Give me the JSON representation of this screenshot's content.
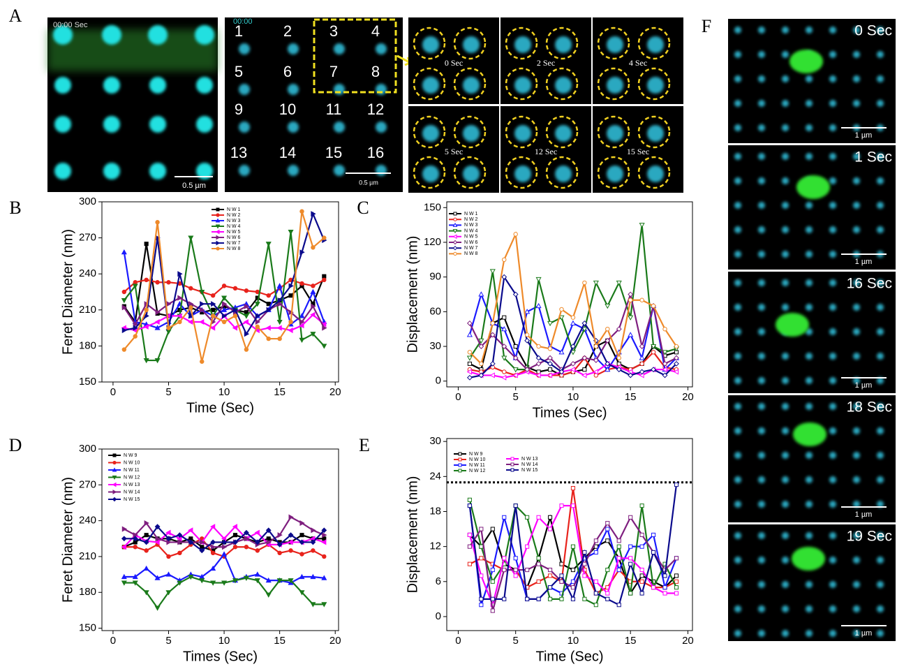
{
  "panel_labels": [
    "A",
    "B",
    "C",
    "D",
    "E",
    "F"
  ],
  "panel_a": {
    "overview_time": "00:00 Sec",
    "overview_scale": "0.5 µm",
    "index_time": "00:00",
    "index_labels": [
      "1",
      "2",
      "3",
      "4",
      "5",
      "6",
      "7",
      "8",
      "9",
      "10",
      "11",
      "12",
      "13",
      "14",
      "15",
      "16"
    ],
    "index_scale": "0.5 µm",
    "frame_times": [
      "0 Sec",
      "2 Sec",
      "4 Sec",
      "5 Sec",
      "12 Sec",
      "15 Sec"
    ]
  },
  "panel_f": {
    "frame_times": [
      "0 Sec",
      "1 Sec",
      "16 Sec",
      "18 Sec",
      "19 Sec"
    ],
    "scale": "1 µm"
  },
  "chart_data": [
    {
      "type": "line",
      "x_label": "Time (Sec)",
      "y_label": "Feret Diameter (nm)",
      "x": [
        1,
        2,
        3,
        4,
        5,
        6,
        7,
        8,
        9,
        10,
        11,
        12,
        13,
        14,
        15,
        16,
        17,
        18,
        19
      ],
      "xlim": [
        -1,
        20.3
      ],
      "ylim": [
        150,
        300
      ],
      "xticks": [
        0,
        5,
        10,
        15,
        20
      ],
      "yticks": [
        150,
        180,
        210,
        240,
        270,
        300
      ],
      "marker_fill": true,
      "legend_columns": 1,
      "series": [
        {
          "name": "N W 1",
          "color": "#000000",
          "marker": "square",
          "values": [
            213,
            200,
            265,
            207,
            205,
            210,
            212,
            208,
            210,
            213,
            210,
            208,
            220,
            215,
            218,
            222,
            230,
            215,
            238
          ]
        },
        {
          "name": "N W 2",
          "color": "#e8231c",
          "marker": "circle",
          "values": [
            225,
            233,
            235,
            233,
            233,
            232,
            228,
            225,
            222,
            230,
            228,
            226,
            225,
            222,
            228,
            235,
            232,
            230,
            235
          ]
        },
        {
          "name": "N W 3",
          "color": "#1a1aff",
          "marker": "triangle",
          "values": [
            258,
            200,
            198,
            195,
            200,
            215,
            205,
            210,
            205,
            210,
            212,
            215,
            205,
            210,
            230,
            198,
            205,
            225,
            200
          ]
        },
        {
          "name": "N W 4",
          "color": "#1a7a1a",
          "marker": "triangle-down",
          "values": [
            218,
            230,
            168,
            168,
            192,
            205,
            270,
            225,
            205,
            220,
            210,
            205,
            215,
            265,
            200,
            275,
            185,
            190,
            180
          ]
        },
        {
          "name": "N W 5",
          "color": "#ff00ff",
          "marker": "triangle-left",
          "values": [
            195,
            193,
            196,
            200,
            205,
            205,
            200,
            200,
            195,
            205,
            195,
            200,
            193,
            195,
            195,
            193,
            197,
            206,
            198
          ]
        },
        {
          "name": "N W 6",
          "color": "#7f1f7f",
          "marker": "triangle-right",
          "values": [
            212,
            198,
            215,
            208,
            215,
            220,
            215,
            210,
            200,
            215,
            208,
            213,
            200,
            210,
            215,
            208,
            200,
            213,
            195
          ]
        },
        {
          "name": "N W 7",
          "color": "#0a0a8c",
          "marker": "triangle-right",
          "values": [
            193,
            195,
            205,
            270,
            195,
            240,
            205,
            215,
            215,
            205,
            210,
            190,
            205,
            210,
            218,
            230,
            258,
            290,
            268
          ]
        },
        {
          "name": "N W 8",
          "color": "#ee8a2a",
          "marker": "circle",
          "values": [
            177,
            188,
            210,
            283,
            195,
            200,
            212,
            167,
            205,
            200,
            205,
            177,
            196,
            186,
            186,
            200,
            292,
            262,
            270
          ]
        }
      ]
    },
    {
      "type": "line",
      "x_label": "Times (Sec)",
      "y_label": "Displacement (nm)",
      "x": [
        1,
        2,
        3,
        4,
        5,
        6,
        7,
        8,
        9,
        10,
        11,
        12,
        13,
        14,
        15,
        16,
        17,
        18,
        19
      ],
      "xlim": [
        -1,
        20.4
      ],
      "ylim": [
        -5,
        155
      ],
      "xticks": [
        0,
        5,
        10,
        15,
        20
      ],
      "yticks": [
        0,
        30,
        60,
        90,
        120,
        150
      ],
      "marker_fill": false,
      "legend_columns": 1,
      "series": [
        {
          "name": "N W 1",
          "color": "#000000",
          "marker": "square",
          "values": [
            15,
            10,
            50,
            55,
            30,
            12,
            8,
            10,
            5,
            8,
            10,
            30,
            35,
            15,
            10,
            15,
            30,
            22,
            25
          ]
        },
        {
          "name": "N W 2",
          "color": "#e8231c",
          "marker": "circle",
          "values": [
            10,
            8,
            12,
            8,
            5,
            10,
            5,
            5,
            5,
            8,
            20,
            5,
            10,
            12,
            10,
            15,
            25,
            12,
            10
          ]
        },
        {
          "name": "N W 3",
          "color": "#1a1aff",
          "marker": "triangle",
          "values": [
            40,
            75,
            50,
            45,
            20,
            60,
            65,
            30,
            25,
            50,
            45,
            20,
            10,
            25,
            40,
            20,
            65,
            10,
            20
          ]
        },
        {
          "name": "N W 4",
          "color": "#1a7a1a",
          "marker": "triangle-down",
          "values": [
            20,
            35,
            95,
            20,
            10,
            10,
            88,
            50,
            55,
            25,
            45,
            85,
            65,
            85,
            55,
            135,
            30,
            25,
            28
          ]
        },
        {
          "name": "N W 5",
          "color": "#ff00ff",
          "marker": "triangle-left",
          "values": [
            8,
            5,
            5,
            3,
            5,
            8,
            5,
            5,
            8,
            10,
            5,
            8,
            15,
            12,
            8,
            5,
            10,
            10,
            8
          ]
        },
        {
          "name": "N W 6",
          "color": "#7f1f7f",
          "marker": "diamond",
          "values": [
            50,
            30,
            40,
            30,
            20,
            10,
            15,
            20,
            10,
            15,
            20,
            18,
            35,
            45,
            75,
            30,
            65,
            15,
            20
          ]
        },
        {
          "name": "N W 7",
          "color": "#0a0a8c",
          "marker": "diamond",
          "values": [
            3,
            5,
            15,
            90,
            75,
            35,
            20,
            15,
            8,
            30,
            50,
            35,
            15,
            10,
            5,
            8,
            10,
            5,
            15
          ]
        },
        {
          "name": "N W 8",
          "color": "#ee8a2a",
          "marker": "circle",
          "values": [
            25,
            15,
            50,
            105,
            127,
            40,
            30,
            28,
            62,
            55,
            85,
            30,
            45,
            20,
            70,
            70,
            65,
            45,
            30
          ]
        }
      ]
    },
    {
      "type": "line",
      "x_label": "Times (Sec)",
      "y_label": "Feret Diameter (nm)",
      "x": [
        1,
        2,
        3,
        4,
        5,
        6,
        7,
        8,
        9,
        10,
        11,
        12,
        13,
        14,
        15,
        16,
        17,
        18,
        19
      ],
      "xlim": [
        -1,
        20.3
      ],
      "ylim": [
        148,
        300
      ],
      "xticks": [
        0,
        5,
        10,
        15,
        20
      ],
      "yticks": [
        150,
        180,
        210,
        240,
        270,
        300
      ],
      "marker_fill": true,
      "legend_columns": 1,
      "series": [
        {
          "name": "N W 9",
          "color": "#000000",
          "marker": "square",
          "values": [
            218,
            222,
            228,
            225,
            225,
            222,
            225,
            218,
            215,
            222,
            228,
            225,
            222,
            225,
            222,
            222,
            228,
            225,
            225
          ]
        },
        {
          "name": "N W 10",
          "color": "#e8231c",
          "marker": "circle",
          "values": [
            218,
            218,
            215,
            220,
            210,
            213,
            220,
            225,
            213,
            210,
            218,
            218,
            215,
            220,
            213,
            215,
            212,
            215,
            210
          ]
        },
        {
          "name": "N W 11",
          "color": "#1a1aff",
          "marker": "triangle",
          "values": [
            193,
            193,
            200,
            192,
            195,
            190,
            195,
            193,
            200,
            212,
            190,
            193,
            195,
            190,
            190,
            188,
            193,
            193,
            192
          ]
        },
        {
          "name": "N W 12",
          "color": "#1a7a1a",
          "marker": "triangle-down",
          "values": [
            188,
            188,
            180,
            167,
            180,
            188,
            193,
            190,
            188,
            188,
            190,
            192,
            190,
            178,
            190,
            190,
            180,
            170,
            170
          ]
        },
        {
          "name": "N W 13",
          "color": "#ff00ff",
          "marker": "triangle-left",
          "values": [
            218,
            228,
            223,
            222,
            230,
            225,
            232,
            222,
            235,
            225,
            235,
            225,
            230,
            220,
            220,
            222,
            222,
            225,
            222
          ]
        },
        {
          "name": "N W 14",
          "color": "#7f1f7f",
          "marker": "triangle-right",
          "values": [
            233,
            228,
            238,
            225,
            222,
            222,
            222,
            222,
            218,
            218,
            222,
            225,
            220,
            222,
            228,
            243,
            238,
            232,
            228
          ]
        },
        {
          "name": "N W 15",
          "color": "#0a0a8c",
          "marker": "diamond",
          "values": [
            225,
            225,
            222,
            235,
            225,
            228,
            222,
            215,
            222,
            222,
            222,
            230,
            222,
            232,
            220,
            228,
            222,
            222,
            232
          ]
        }
      ]
    },
    {
      "type": "line",
      "x_label": "Time (Sec)",
      "y_label": "Displacement (nm)",
      "x": [
        1,
        2,
        3,
        4,
        5,
        6,
        7,
        8,
        9,
        10,
        11,
        12,
        13,
        14,
        15,
        16,
        17,
        18,
        19
      ],
      "xlim": [
        -1,
        20.4
      ],
      "ylim": [
        -2.4,
        30.5
      ],
      "xticks": [
        0,
        5,
        10,
        15,
        20
      ],
      "yticks": [
        0,
        6,
        12,
        18,
        24,
        30
      ],
      "marker_fill": false,
      "legend_columns": 2,
      "reference_line": 23,
      "series": [
        {
          "name": "N W 9",
          "color": "#000000",
          "marker": "square",
          "values": [
            14,
            12,
            15,
            9,
            8,
            5,
            10,
            17,
            9,
            8,
            10,
            12,
            13,
            10,
            4,
            7,
            6,
            5,
            7
          ]
        },
        {
          "name": "N W 10",
          "color": "#e8231c",
          "marker": "square",
          "values": [
            9,
            10,
            9,
            8,
            8,
            5,
            6,
            7,
            6,
            22,
            8,
            4,
            5,
            8,
            6,
            6,
            5,
            5,
            6
          ]
        },
        {
          "name": "N W 11",
          "color": "#1a1aff",
          "marker": "square",
          "values": [
            19,
            2,
            8,
            17,
            10,
            3,
            3,
            5,
            4,
            6,
            10,
            11,
            15,
            8,
            12,
            12,
            14,
            5,
            10
          ]
        },
        {
          "name": "N W 12",
          "color": "#1a7a1a",
          "marker": "square",
          "values": [
            20,
            12,
            6,
            9,
            19,
            17,
            10,
            3,
            3,
            12,
            3,
            2,
            8,
            12,
            4,
            19,
            5,
            9,
            5
          ]
        },
        {
          "name": "N W 13",
          "color": "#ff00ff",
          "marker": "square",
          "values": [
            14,
            7,
            2,
            10,
            7,
            12,
            17,
            15,
            19,
            19,
            7,
            6,
            4,
            10,
            10,
            8,
            5,
            4,
            4
          ]
        },
        {
          "name": "N W 14",
          "color": "#7f1f7f",
          "marker": "square",
          "values": [
            12,
            15,
            1,
            8,
            8,
            8,
            9,
            8,
            6,
            5,
            9,
            13,
            16,
            13,
            17,
            14,
            11,
            8,
            10
          ]
        },
        {
          "name": "N W 15",
          "color": "#0a0a8c",
          "marker": "square",
          "values": [
            19,
            3,
            3,
            3,
            19,
            3,
            3,
            5,
            7,
            3,
            11,
            4,
            3,
            2,
            9,
            4,
            11,
            7,
            22.6
          ]
        }
      ]
    }
  ]
}
